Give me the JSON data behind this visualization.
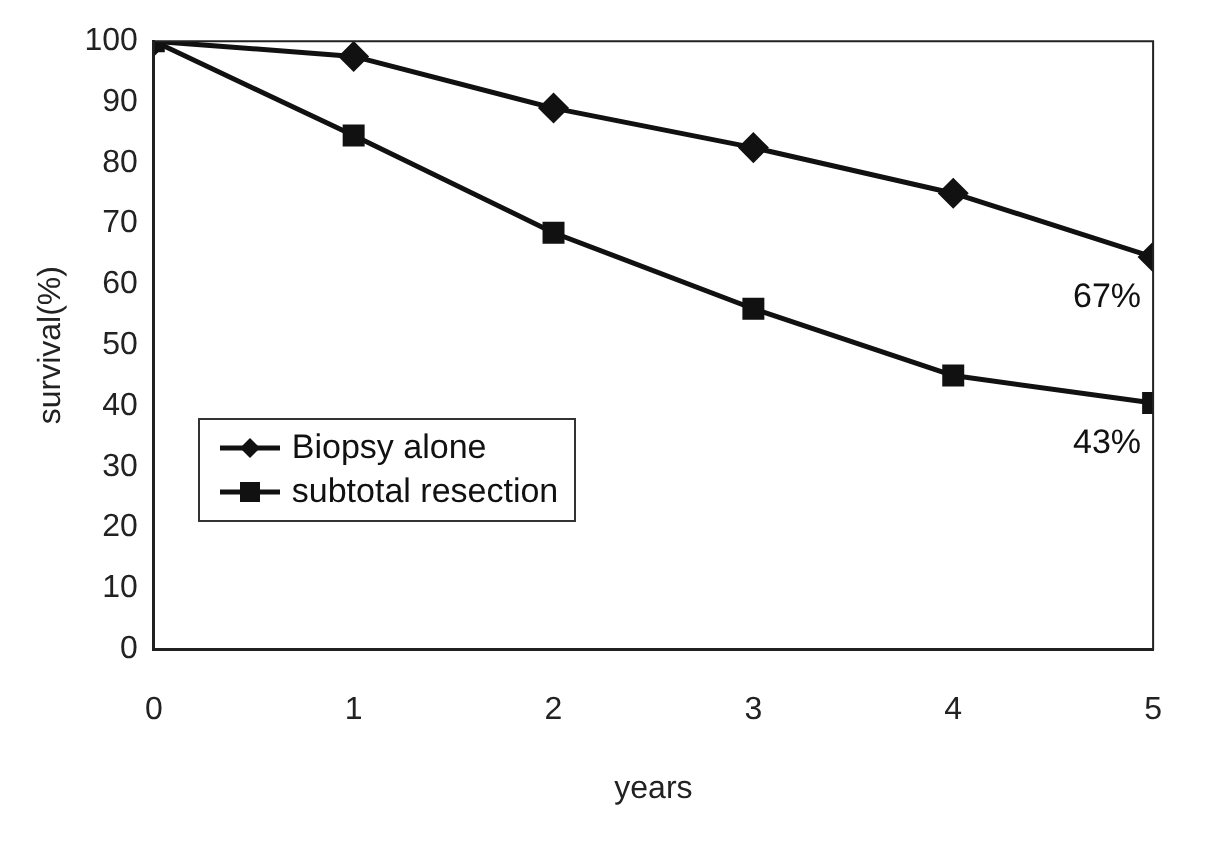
{
  "chart_data": {
    "type": "line",
    "xlabel": "years",
    "ylabel": "survival(%)",
    "x": [
      0,
      1,
      2,
      3,
      4,
      5
    ],
    "series": [
      {
        "name": "Biopsy alone",
        "color": "#111111",
        "marker": "diamond",
        "values": [
          100,
          97.5,
          89,
          82.5,
          75,
          64.5
        ]
      },
      {
        "name": "subtotal resection",
        "color": "#111111",
        "marker": "square",
        "values": [
          100,
          84.5,
          68.5,
          56,
          45,
          40.5
        ]
      }
    ],
    "xlim": [
      0,
      5
    ],
    "xticks": [
      0,
      1,
      2,
      3,
      4,
      5
    ],
    "ylim": [
      0,
      100
    ],
    "yticks": [
      0,
      10,
      20,
      30,
      40,
      50,
      60,
      70,
      80,
      90,
      100
    ],
    "grid": false,
    "legend": "left",
    "line_style": "solid",
    "annotations": [
      {
        "text": "67%",
        "x": 5,
        "y": 64.5
      },
      {
        "text": "43%",
        "x": 5,
        "y": 40.5
      }
    ]
  }
}
